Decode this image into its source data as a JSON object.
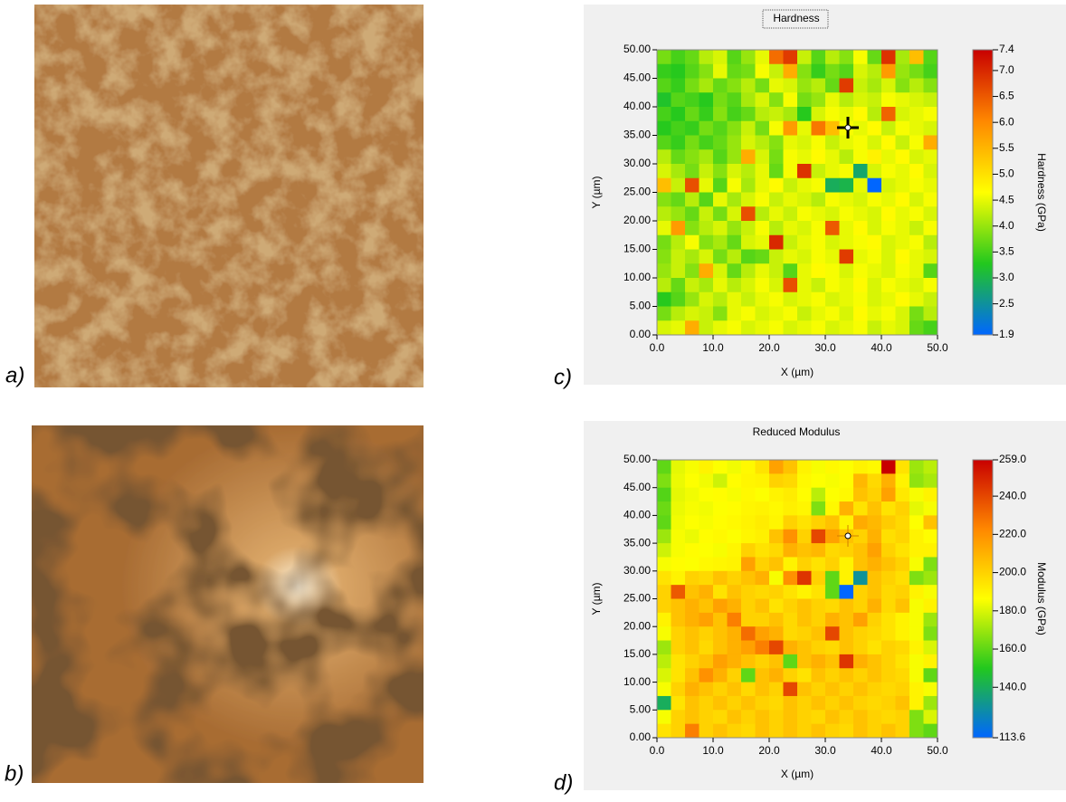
{
  "panel_labels": [
    "a)",
    "b)",
    "c)",
    "d)"
  ],
  "chart_data": [
    {
      "type": "heatmap",
      "title": "Hardness",
      "xlabel": "X (µm)",
      "ylabel": "Y (µm)",
      "colorbar_label": "Hardness (GPa)",
      "xlim": [
        0,
        50
      ],
      "ylim": [
        0,
        50
      ],
      "xticks": [
        {
          "value": 0,
          "label": "0.0"
        },
        {
          "value": 10,
          "label": "10.0"
        },
        {
          "value": 20,
          "label": "20.0"
        },
        {
          "value": 30,
          "label": "30.0"
        },
        {
          "value": 40,
          "label": "40.0"
        },
        {
          "value": 50,
          "label": "50.0"
        }
      ],
      "yticks": [
        {
          "value": 0,
          "label": "0.00"
        },
        {
          "value": 5,
          "label": "5.00"
        },
        {
          "value": 10,
          "label": "10.00"
        },
        {
          "value": 15,
          "label": "15.00"
        },
        {
          "value": 20,
          "label": "20.00"
        },
        {
          "value": 25,
          "label": "25.00"
        },
        {
          "value": 30,
          "label": "30.00"
        },
        {
          "value": 35,
          "label": "35.00"
        },
        {
          "value": 40,
          "label": "40.00"
        },
        {
          "value": 45,
          "label": "45.00"
        },
        {
          "value": 50,
          "label": "50.00"
        }
      ],
      "clim": [
        1.9,
        7.4
      ],
      "cticks": [
        7.4,
        {
          "value": 7.0,
          "label": "7.0"
        },
        6.5,
        {
          "value": 6.0,
          "label": "6.0"
        },
        5.5,
        {
          "value": 5.0,
          "label": "5.0"
        },
        4.5,
        {
          "value": 4.0,
          "label": "4.0"
        },
        3.5,
        {
          "value": 3.0,
          "label": "3.0"
        },
        2.5,
        1.9
      ],
      "colormap": [
        "#0066ff",
        "#22c81e",
        "#ffff00",
        "#ff8800",
        "#c80000"
      ],
      "values": [
        [
          3.8,
          3.5,
          3.7,
          4.2,
          4.4,
          3.6,
          4.0,
          4.5,
          6.3,
          6.8,
          4.3,
          3.6,
          4.2,
          3.9,
          4.6,
          3.7,
          6.9,
          4.1,
          5.4,
          3.6
        ],
        [
          3.4,
          3.3,
          3.6,
          3.9,
          4.5,
          3.7,
          3.8,
          4.6,
          4.3,
          5.6,
          3.9,
          3.4,
          3.8,
          3.6,
          4.4,
          4.2,
          5.8,
          4.0,
          3.8,
          3.5
        ],
        [
          3.6,
          3.4,
          3.8,
          4.1,
          3.7,
          3.9,
          4.2,
          3.8,
          4.5,
          4.4,
          4.0,
          4.2,
          3.7,
          6.8,
          4.3,
          4.1,
          4.4,
          3.9,
          4.2,
          3.9
        ],
        [
          3.2,
          3.6,
          3.5,
          3.3,
          3.8,
          3.6,
          4.1,
          4.4,
          3.9,
          4.6,
          3.8,
          4.0,
          4.5,
          4.2,
          4.4,
          4.3,
          4.6,
          4.5,
          4.4,
          4.3
        ],
        [
          3.5,
          3.3,
          3.7,
          3.4,
          3.9,
          3.5,
          3.7,
          4.2,
          4.3,
          4.1,
          3.3,
          4.4,
          4.6,
          4.5,
          4.7,
          4.2,
          6.4,
          4.4,
          4.5,
          4.6
        ],
        [
          3.3,
          3.5,
          3.4,
          3.8,
          3.6,
          3.9,
          4.3,
          3.8,
          4.6,
          5.8,
          4.5,
          6.2,
          5.4,
          4.6,
          4.5,
          4.7,
          4.3,
          4.6,
          4.5,
          4.4
        ],
        [
          3.6,
          3.4,
          3.8,
          3.5,
          3.7,
          4.0,
          4.4,
          4.2,
          3.9,
          4.5,
          4.4,
          4.6,
          4.3,
          4.5,
          4.6,
          4.4,
          4.7,
          4.3,
          4.6,
          5.6
        ],
        [
          4.2,
          3.7,
          3.9,
          4.1,
          3.6,
          4.0,
          5.6,
          4.4,
          3.8,
          4.6,
          4.5,
          4.7,
          4.5,
          4.2,
          4.6,
          4.8,
          4.5,
          4.7,
          4.4,
          4.5
        ],
        [
          4.4,
          4.1,
          3.8,
          4.3,
          3.9,
          4.4,
          4.2,
          4.5,
          3.7,
          4.6,
          6.9,
          4.3,
          4.5,
          4.6,
          2.8,
          4.4,
          4.6,
          4.5,
          4.7,
          4.4
        ],
        [
          5.4,
          4.3,
          6.6,
          4.5,
          3.6,
          4.6,
          4.1,
          4.5,
          4.7,
          4.3,
          4.5,
          4.6,
          2.9,
          3.0,
          4.5,
          1.9,
          4.4,
          4.5,
          4.6,
          4.5
        ],
        [
          3.9,
          3.7,
          4.2,
          3.6,
          4.5,
          4.1,
          4.4,
          4.6,
          4.3,
          4.5,
          4.4,
          4.2,
          4.6,
          4.5,
          4.4,
          4.6,
          4.5,
          4.7,
          4.4,
          4.6
        ],
        [
          4.2,
          4.0,
          3.7,
          4.3,
          3.8,
          4.4,
          6.6,
          4.2,
          4.5,
          4.3,
          4.6,
          4.5,
          4.4,
          4.6,
          4.5,
          4.4,
          4.7,
          4.5,
          4.6,
          4.4
        ],
        [
          4.5,
          5.8,
          3.9,
          4.2,
          4.4,
          4.0,
          4.3,
          4.6,
          4.2,
          4.5,
          4.4,
          4.6,
          6.5,
          4.5,
          4.7,
          4.4,
          4.6,
          4.5,
          4.3,
          4.6
        ],
        [
          3.8,
          4.2,
          4.6,
          3.9,
          4.1,
          3.7,
          4.4,
          4.5,
          7.0,
          4.3,
          4.5,
          4.6,
          4.4,
          4.5,
          4.6,
          4.7,
          4.4,
          4.5,
          4.6,
          4.2
        ],
        [
          3.9,
          4.3,
          4.1,
          4.4,
          3.8,
          4.2,
          3.6,
          3.7,
          4.3,
          4.5,
          4.4,
          4.6,
          4.5,
          6.8,
          4.5,
          4.6,
          4.4,
          4.7,
          4.5,
          4.4
        ],
        [
          4.0,
          4.3,
          3.9,
          5.6,
          4.4,
          3.7,
          4.2,
          4.5,
          4.3,
          3.6,
          4.5,
          4.7,
          4.6,
          4.4,
          4.6,
          4.5,
          4.4,
          4.6,
          4.5,
          3.6
        ],
        [
          4.2,
          3.7,
          4.3,
          4.1,
          4.5,
          4.2,
          4.4,
          4.6,
          4.4,
          6.6,
          4.5,
          4.3,
          4.6,
          4.5,
          4.7,
          4.4,
          4.6,
          4.5,
          4.4,
          4.6
        ],
        [
          3.3,
          3.6,
          4.0,
          4.4,
          4.2,
          4.5,
          4.3,
          4.5,
          4.6,
          4.4,
          4.5,
          4.6,
          4.4,
          4.5,
          4.6,
          4.4,
          4.5,
          4.7,
          4.5,
          4.3
        ],
        [
          3.8,
          4.2,
          4.4,
          4.3,
          3.9,
          4.5,
          4.6,
          4.4,
          4.5,
          4.6,
          4.3,
          4.5,
          4.6,
          4.4,
          4.7,
          4.5,
          4.6,
          4.4,
          3.8,
          4.2
        ],
        [
          4.4,
          4.5,
          5.6,
          4.3,
          4.5,
          4.6,
          4.4,
          4.5,
          4.6,
          4.4,
          4.5,
          4.6,
          4.4,
          4.5,
          4.6,
          4.3,
          4.5,
          4.4,
          3.7,
          3.5
        ]
      ]
    },
    {
      "type": "heatmap",
      "title": "Reduced Modulus",
      "xlabel": "X (µm)",
      "ylabel": "Y (µm)",
      "colorbar_label": "Modulus (GPa)",
      "xlim": [
        0,
        50
      ],
      "ylim": [
        0,
        50
      ],
      "xticks": [
        {
          "value": 0,
          "label": "0.0"
        },
        {
          "value": 10,
          "label": "10.0"
        },
        {
          "value": 20,
          "label": "20.0"
        },
        {
          "value": 30,
          "label": "30.0"
        },
        {
          "value": 40,
          "label": "40.0"
        },
        {
          "value": 50,
          "label": "50.0"
        }
      ],
      "yticks": [
        {
          "value": 0,
          "label": "0.00"
        },
        {
          "value": 5,
          "label": "5.00"
        },
        {
          "value": 10,
          "label": "10.00"
        },
        {
          "value": 15,
          "label": "15.00"
        },
        {
          "value": 20,
          "label": "20.00"
        },
        {
          "value": 25,
          "label": "25.00"
        },
        {
          "value": 30,
          "label": "30.00"
        },
        {
          "value": 35,
          "label": "35.00"
        },
        {
          "value": 40,
          "label": "40.00"
        },
        {
          "value": 45,
          "label": "45.00"
        },
        {
          "value": 50,
          "label": "50.00"
        }
      ],
      "clim": [
        113.6,
        259
      ],
      "cticks": [
        {
          "value": 259,
          "label": "259.0"
        },
        {
          "value": 240,
          "label": "240.0"
        },
        {
          "value": 220,
          "label": "220.0"
        },
        {
          "value": 200,
          "label": "200.0"
        },
        {
          "value": 180,
          "label": "180.0"
        },
        {
          "value": 160,
          "label": "160.0"
        },
        {
          "value": 140,
          "label": "140.0"
        },
        113.6
      ],
      "colormap": [
        "#0066ff",
        "#22c81e",
        "#ffff00",
        "#ff8800",
        "#c80000"
      ],
      "values": [
        [
          160,
          182,
          185,
          190,
          186,
          184,
          188,
          195,
          215,
          205,
          190,
          185,
          188,
          186,
          190,
          188,
          259,
          195,
          170,
          175
        ],
        [
          165,
          183,
          186,
          184,
          178,
          187,
          189,
          190,
          200,
          198,
          188,
          186,
          185,
          187,
          208,
          198,
          210,
          190,
          168,
          172
        ],
        [
          158,
          182,
          184,
          186,
          187,
          185,
          188,
          186,
          190,
          192,
          187,
          175,
          186,
          188,
          205,
          200,
          215,
          193,
          185,
          190
        ],
        [
          162,
          183,
          185,
          184,
          186,
          187,
          189,
          190,
          188,
          191,
          189,
          165,
          188,
          210,
          195,
          205,
          195,
          200,
          182,
          185
        ],
        [
          160,
          184,
          186,
          185,
          187,
          188,
          190,
          192,
          189,
          200,
          195,
          200,
          205,
          190,
          212,
          208,
          202,
          198,
          186,
          205
        ],
        [
          170,
          185,
          183,
          187,
          188,
          186,
          189,
          191,
          205,
          220,
          200,
          240,
          215,
          205,
          200,
          210,
          196,
          199,
          190,
          187
        ],
        [
          178,
          185,
          187,
          186,
          185,
          189,
          200,
          195,
          198,
          210,
          205,
          208,
          198,
          200,
          205,
          215,
          200,
          195,
          190,
          190
        ],
        [
          185,
          187,
          186,
          188,
          189,
          190,
          215,
          200,
          205,
          190,
          200,
          195,
          200,
          190,
          205,
          210,
          205,
          200,
          185,
          165
        ],
        [
          195,
          190,
          200,
          198,
          205,
          200,
          205,
          210,
          185,
          220,
          245,
          200,
          160,
          190,
          130,
          205,
          200,
          196,
          165,
          170
        ],
        [
          200,
          235,
          205,
          210,
          195,
          205,
          200,
          198,
          200,
          195,
          190,
          195,
          160,
          113.6,
          200,
          205,
          198,
          200,
          190,
          185
        ],
        [
          200,
          205,
          210,
          205,
          215,
          210,
          200,
          205,
          195,
          200,
          205,
          200,
          198,
          205,
          200,
          210,
          198,
          205,
          185,
          190
        ],
        [
          190,
          205,
          210,
          215,
          205,
          225,
          200,
          200,
          205,
          198,
          205,
          200,
          210,
          205,
          215,
          200,
          195,
          190,
          185,
          170
        ],
        [
          185,
          200,
          205,
          200,
          205,
          210,
          230,
          215,
          210,
          198,
          200,
          205,
          240,
          205,
          200,
          198,
          195,
          190,
          185,
          165
        ],
        [
          170,
          200,
          205,
          198,
          205,
          210,
          215,
          225,
          240,
          210,
          205,
          200,
          198,
          205,
          200,
          195,
          200,
          198,
          190,
          180
        ],
        [
          175,
          195,
          200,
          205,
          215,
          210,
          205,
          200,
          205,
          160,
          205,
          210,
          205,
          245,
          210,
          205,
          200,
          195,
          185,
          190
        ],
        [
          180,
          195,
          205,
          220,
          210,
          200,
          160,
          205,
          210,
          200,
          195,
          205,
          200,
          205,
          200,
          205,
          200,
          198,
          185,
          160
        ],
        [
          185,
          200,
          210,
          205,
          200,
          205,
          198,
          205,
          200,
          240,
          205,
          200,
          205,
          200,
          205,
          200,
          198,
          200,
          190,
          185
        ],
        [
          140,
          195,
          205,
          200,
          205,
          200,
          205,
          200,
          198,
          205,
          200,
          205,
          200,
          205,
          200,
          198,
          200,
          205,
          190,
          170
        ],
        [
          185,
          200,
          205,
          200,
          198,
          205,
          200,
          205,
          200,
          205,
          200,
          198,
          205,
          200,
          205,
          200,
          198,
          200,
          165,
          180
        ],
        [
          195,
          200,
          225,
          200,
          205,
          200,
          198,
          205,
          200,
          205,
          200,
          205,
          200,
          198,
          205,
          200,
          205,
          200,
          165,
          160
        ]
      ]
    }
  ]
}
